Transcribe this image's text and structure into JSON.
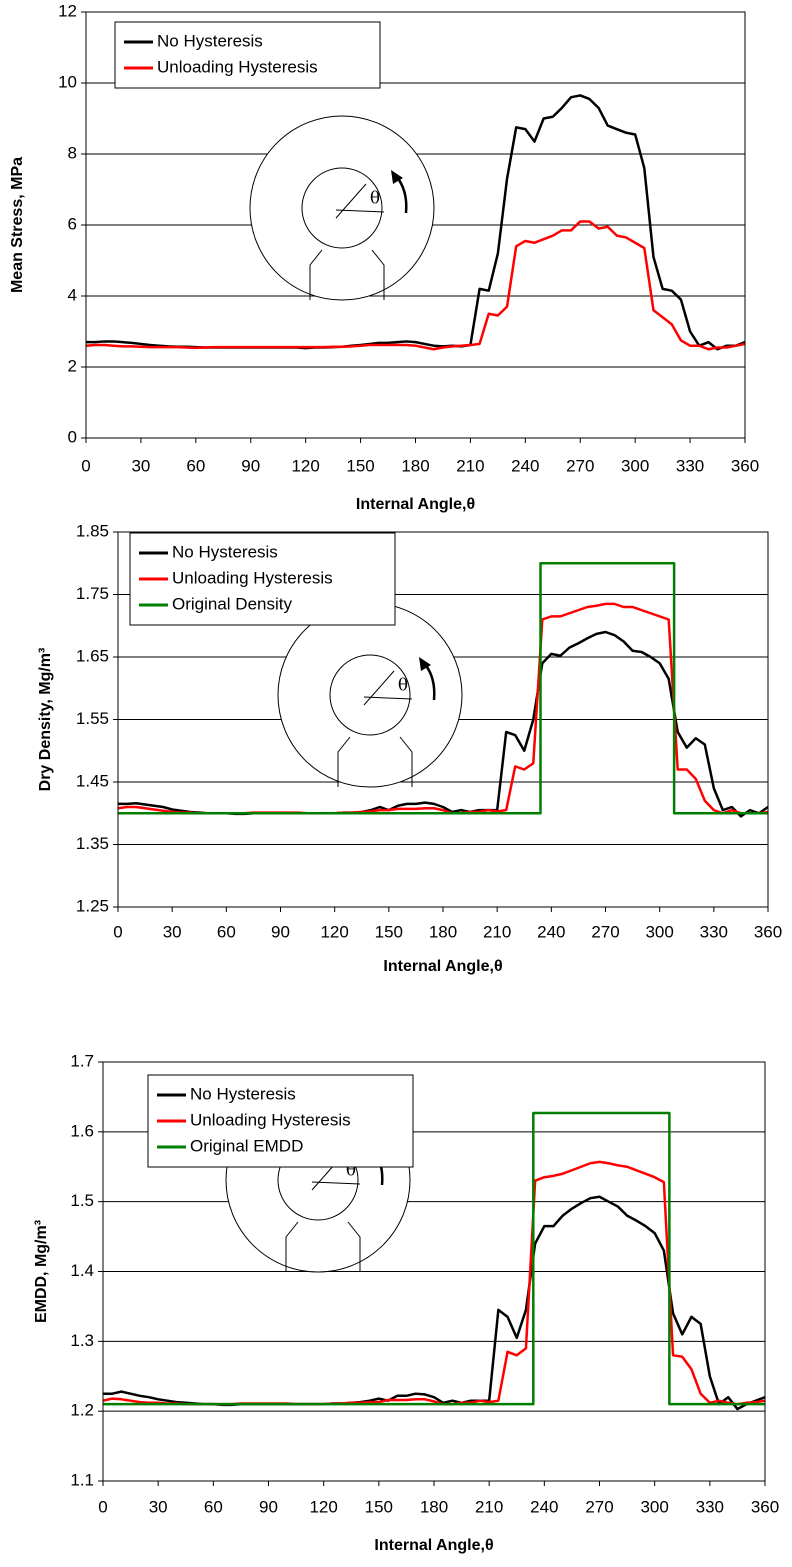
{
  "chart_data": [
    {
      "type": "line",
      "x_label": "Internal Angle,θ",
      "y_label": "Mean Stress, MPa",
      "inset_label": "θ",
      "xlim": [
        0,
        360
      ],
      "xticks": [
        0,
        30,
        60,
        90,
        120,
        150,
        180,
        210,
        240,
        270,
        300,
        330,
        360
      ],
      "ylim": [
        0,
        12
      ],
      "yticks": [
        0,
        2,
        4,
        6,
        8,
        10,
        12
      ],
      "grid": true,
      "legend": "top-left",
      "x": [
        0,
        5,
        10,
        15,
        20,
        25,
        30,
        35,
        40,
        45,
        50,
        55,
        60,
        65,
        70,
        75,
        80,
        85,
        90,
        95,
        100,
        105,
        110,
        115,
        120,
        125,
        130,
        135,
        140,
        145,
        150,
        155,
        160,
        165,
        170,
        175,
        180,
        185,
        190,
        195,
        200,
        205,
        210,
        215,
        220,
        225,
        230,
        235,
        240,
        245,
        250,
        255,
        260,
        265,
        270,
        275,
        280,
        285,
        290,
        295,
        300,
        305,
        310,
        315,
        320,
        325,
        330,
        335,
        340,
        345,
        350,
        355,
        360
      ],
      "series": [
        {
          "name": "No Hysteresis",
          "color": "#000000",
          "values": [
            2.7,
            2.7,
            2.72,
            2.72,
            2.7,
            2.68,
            2.65,
            2.62,
            2.6,
            2.58,
            2.57,
            2.57,
            2.56,
            2.55,
            2.55,
            2.55,
            2.55,
            2.55,
            2.55,
            2.55,
            2.55,
            2.55,
            2.55,
            2.55,
            2.53,
            2.55,
            2.55,
            2.56,
            2.57,
            2.6,
            2.62,
            2.65,
            2.68,
            2.68,
            2.7,
            2.72,
            2.7,
            2.65,
            2.6,
            2.58,
            2.6,
            2.58,
            2.62,
            4.2,
            4.15,
            5.2,
            7.3,
            8.75,
            8.7,
            8.35,
            9.0,
            9.05,
            9.3,
            9.6,
            9.65,
            9.55,
            9.3,
            8.8,
            8.7,
            8.6,
            8.55,
            7.6,
            5.1,
            4.2,
            4.15,
            3.9,
            3.0,
            2.6,
            2.7,
            2.5,
            2.6,
            2.6,
            2.7
          ]
        },
        {
          "name": "Unloading Hysteresis",
          "color": "#ff0000",
          "values": [
            2.6,
            2.62,
            2.62,
            2.6,
            2.58,
            2.58,
            2.57,
            2.56,
            2.56,
            2.56,
            2.56,
            2.55,
            2.54,
            2.55,
            2.56,
            2.56,
            2.56,
            2.56,
            2.56,
            2.56,
            2.56,
            2.56,
            2.56,
            2.56,
            2.56,
            2.56,
            2.56,
            2.57,
            2.57,
            2.58,
            2.6,
            2.62,
            2.62,
            2.62,
            2.62,
            2.62,
            2.6,
            2.55,
            2.5,
            2.55,
            2.58,
            2.6,
            2.62,
            2.65,
            3.5,
            3.45,
            3.7,
            5.4,
            5.55,
            5.5,
            5.6,
            5.7,
            5.85,
            5.85,
            6.1,
            6.1,
            5.9,
            5.95,
            5.7,
            5.65,
            5.5,
            5.35,
            3.6,
            3.4,
            3.2,
            2.75,
            2.6,
            2.6,
            2.5,
            2.55,
            2.55,
            2.6,
            2.65
          ]
        }
      ]
    },
    {
      "type": "line",
      "x_label": "Internal Angle,θ",
      "y_label": "Dry Density, Mg/m³",
      "inset_label": "θ",
      "xlim": [
        0,
        360
      ],
      "xticks": [
        0,
        30,
        60,
        90,
        120,
        150,
        180,
        210,
        240,
        270,
        300,
        330,
        360
      ],
      "ylim": [
        1.25,
        1.85
      ],
      "yticks": [
        1.25,
        1.35,
        1.45,
        1.55,
        1.65,
        1.75,
        1.85
      ],
      "grid": true,
      "legend": "top-left",
      "x": [
        0,
        5,
        10,
        15,
        20,
        25,
        30,
        35,
        40,
        45,
        50,
        55,
        60,
        65,
        70,
        75,
        80,
        85,
        90,
        95,
        100,
        105,
        110,
        115,
        120,
        125,
        130,
        135,
        140,
        145,
        150,
        155,
        160,
        165,
        170,
        175,
        180,
        185,
        190,
        195,
        200,
        205,
        210,
        215,
        220,
        225,
        230,
        235,
        240,
        245,
        250,
        255,
        260,
        265,
        270,
        275,
        280,
        285,
        290,
        295,
        300,
        305,
        310,
        315,
        320,
        325,
        330,
        335,
        340,
        345,
        350,
        355,
        360
      ],
      "series": [
        {
          "name": "No Hysteresis",
          "color": "#000000",
          "values": [
            1.415,
            1.415,
            1.416,
            1.414,
            1.412,
            1.41,
            1.406,
            1.404,
            1.402,
            1.401,
            1.4,
            1.4,
            1.4,
            1.399,
            1.399,
            1.4,
            1.4,
            1.4,
            1.4,
            1.4,
            1.4,
            1.4,
            1.4,
            1.4,
            1.4,
            1.401,
            1.401,
            1.402,
            1.405,
            1.41,
            1.405,
            1.412,
            1.415,
            1.415,
            1.417,
            1.415,
            1.41,
            1.402,
            1.405,
            1.402,
            1.405,
            1.405,
            1.405,
            1.53,
            1.525,
            1.5,
            1.55,
            1.64,
            1.655,
            1.652,
            1.665,
            1.672,
            1.68,
            1.687,
            1.69,
            1.685,
            1.675,
            1.66,
            1.658,
            1.65,
            1.64,
            1.615,
            1.53,
            1.505,
            1.52,
            1.51,
            1.44,
            1.405,
            1.41,
            1.395,
            1.405,
            1.4,
            1.41
          ]
        },
        {
          "name": "Unloading Hysteresis",
          "color": "#ff0000",
          "values": [
            1.408,
            1.41,
            1.41,
            1.408,
            1.406,
            1.404,
            1.402,
            1.401,
            1.401,
            1.4,
            1.4,
            1.4,
            1.4,
            1.4,
            1.4,
            1.401,
            1.401,
            1.401,
            1.401,
            1.401,
            1.401,
            1.4,
            1.4,
            1.4,
            1.4,
            1.401,
            1.401,
            1.402,
            1.403,
            1.405,
            1.405,
            1.407,
            1.407,
            1.407,
            1.408,
            1.408,
            1.405,
            1.4,
            1.4,
            1.402,
            1.402,
            1.405,
            1.403,
            1.405,
            1.475,
            1.47,
            1.48,
            1.71,
            1.715,
            1.715,
            1.72,
            1.725,
            1.73,
            1.732,
            1.735,
            1.735,
            1.73,
            1.73,
            1.725,
            1.72,
            1.715,
            1.71,
            1.47,
            1.47,
            1.455,
            1.42,
            1.405,
            1.4,
            1.405,
            1.4,
            1.4,
            1.4,
            1.402
          ]
        },
        {
          "name": "Original Density",
          "color": "#007f00",
          "x": [
            0,
            234,
            234,
            308,
            308,
            360
          ],
          "values": [
            1.4,
            1.4,
            1.8,
            1.8,
            1.4,
            1.4
          ]
        }
      ]
    },
    {
      "type": "line",
      "x_label": "Internal Angle,θ",
      "y_label": "EMDD, Mg/m³",
      "inset_label": "θ",
      "xlim": [
        0,
        360
      ],
      "xticks": [
        0,
        30,
        60,
        90,
        120,
        150,
        180,
        210,
        240,
        270,
        300,
        330,
        360
      ],
      "ylim": [
        1.1,
        1.7
      ],
      "yticks": [
        1.1,
        1.2,
        1.3,
        1.4,
        1.5,
        1.6,
        1.7
      ],
      "grid": true,
      "legend": "top-left",
      "x": [
        0,
        5,
        10,
        15,
        20,
        25,
        30,
        35,
        40,
        45,
        50,
        55,
        60,
        65,
        70,
        75,
        80,
        85,
        90,
        95,
        100,
        105,
        110,
        115,
        120,
        125,
        130,
        135,
        140,
        145,
        150,
        155,
        160,
        165,
        170,
        175,
        180,
        185,
        190,
        195,
        200,
        205,
        210,
        215,
        220,
        225,
        230,
        235,
        240,
        245,
        250,
        255,
        260,
        265,
        270,
        275,
        280,
        285,
        290,
        295,
        300,
        305,
        310,
        315,
        320,
        325,
        330,
        335,
        340,
        345,
        350,
        355,
        360
      ],
      "series": [
        {
          "name": "No Hysteresis",
          "color": "#000000",
          "values": [
            1.225,
            1.225,
            1.228,
            1.225,
            1.222,
            1.22,
            1.217,
            1.215,
            1.213,
            1.212,
            1.211,
            1.21,
            1.21,
            1.209,
            1.209,
            1.21,
            1.21,
            1.21,
            1.21,
            1.21,
            1.21,
            1.21,
            1.21,
            1.21,
            1.21,
            1.211,
            1.211,
            1.212,
            1.213,
            1.215,
            1.218,
            1.215,
            1.222,
            1.222,
            1.225,
            1.224,
            1.22,
            1.212,
            1.215,
            1.212,
            1.215,
            1.215,
            1.215,
            1.345,
            1.335,
            1.305,
            1.345,
            1.44,
            1.465,
            1.465,
            1.48,
            1.49,
            1.498,
            1.505,
            1.507,
            1.5,
            1.493,
            1.48,
            1.473,
            1.465,
            1.455,
            1.43,
            1.34,
            1.31,
            1.335,
            1.325,
            1.25,
            1.21,
            1.22,
            1.203,
            1.21,
            1.215,
            1.22
          ]
        },
        {
          "name": "Unloading Hysteresis",
          "color": "#ff0000",
          "values": [
            1.215,
            1.218,
            1.217,
            1.215,
            1.213,
            1.212,
            1.212,
            1.211,
            1.211,
            1.21,
            1.21,
            1.21,
            1.21,
            1.21,
            1.21,
            1.211,
            1.211,
            1.211,
            1.211,
            1.211,
            1.211,
            1.21,
            1.21,
            1.21,
            1.21,
            1.211,
            1.211,
            1.212,
            1.212,
            1.213,
            1.213,
            1.216,
            1.216,
            1.216,
            1.217,
            1.217,
            1.214,
            1.21,
            1.21,
            1.212,
            1.212,
            1.215,
            1.213,
            1.215,
            1.285,
            1.28,
            1.29,
            1.53,
            1.535,
            1.537,
            1.54,
            1.545,
            1.55,
            1.555,
            1.557,
            1.555,
            1.552,
            1.55,
            1.545,
            1.54,
            1.535,
            1.528,
            1.28,
            1.278,
            1.26,
            1.225,
            1.212,
            1.215,
            1.212,
            1.21,
            1.212,
            1.213,
            1.215
          ]
        },
        {
          "name": "Original EMDD",
          "color": "#007f00",
          "x": [
            0,
            234,
            234,
            308,
            308,
            360
          ],
          "values": [
            1.21,
            1.21,
            1.627,
            1.627,
            1.21,
            1.21
          ]
        }
      ]
    }
  ]
}
